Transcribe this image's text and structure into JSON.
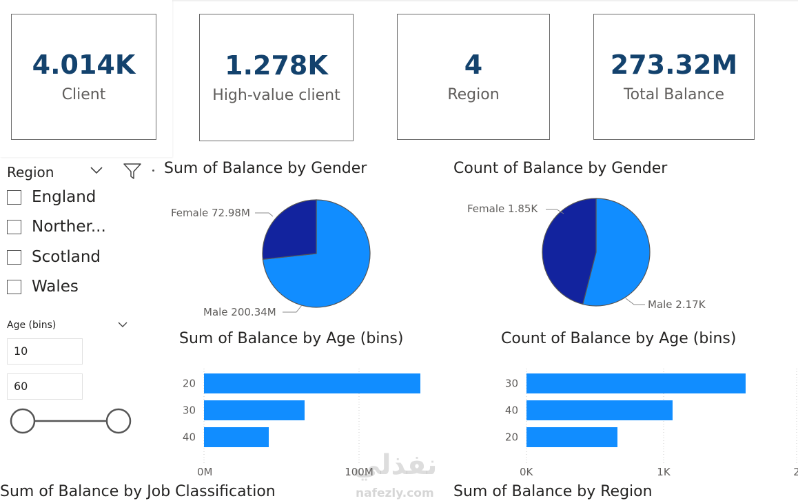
{
  "kpis": [
    {
      "value": "4.014K",
      "label": "Client"
    },
    {
      "value": "1.278K",
      "label": "High-value client"
    },
    {
      "value": "4",
      "label": "Region"
    },
    {
      "value": "273.32M",
      "label": "Total Balance"
    }
  ],
  "slicer_region": {
    "title": "Region",
    "items": [
      "England",
      "Norther...",
      "Scotland",
      "Wales"
    ]
  },
  "slicer_age": {
    "title": "Age (bins)",
    "min_value": "10",
    "max_value": "60"
  },
  "colors": {
    "primary": "#118dff",
    "dark": "#12239e",
    "kpi_value": "#13426d"
  },
  "chart_data": [
    {
      "type": "pie",
      "title": "Sum of Balance by Gender",
      "categories": [
        "Female",
        "Male"
      ],
      "values": [
        72.98,
        200.34
      ],
      "labels": [
        "Female 72.98M",
        "Male 200.34M"
      ]
    },
    {
      "type": "pie",
      "title": "Count of Balance by Gender",
      "categories": [
        "Female",
        "Male"
      ],
      "values": [
        1.85,
        2.17
      ],
      "labels": [
        "Female 1.85K",
        "Male 2.17K"
      ]
    },
    {
      "type": "bar",
      "title": "Sum of Balance by Age (bins)",
      "categories": [
        "20",
        "30",
        "40"
      ],
      "values": [
        157,
        73,
        47
      ],
      "unit": "M",
      "xlim": [
        0,
        260
      ],
      "ticks": [
        "0M",
        "100M"
      ]
    },
    {
      "type": "bar",
      "title": "Count of Balance by Age (bins)",
      "categories": [
        "30",
        "40",
        "20"
      ],
      "values": [
        1590,
        1060,
        660
      ],
      "xlim": [
        0,
        2000
      ],
      "ticks": [
        "0K",
        "1K",
        "2"
      ]
    }
  ],
  "footer_titles": {
    "job": "Sum of Balance by Job Classification",
    "region": "Sum of Balance by Region"
  },
  "watermark": {
    "arabic": "نفذلي",
    "latin": "nafezly.com"
  }
}
